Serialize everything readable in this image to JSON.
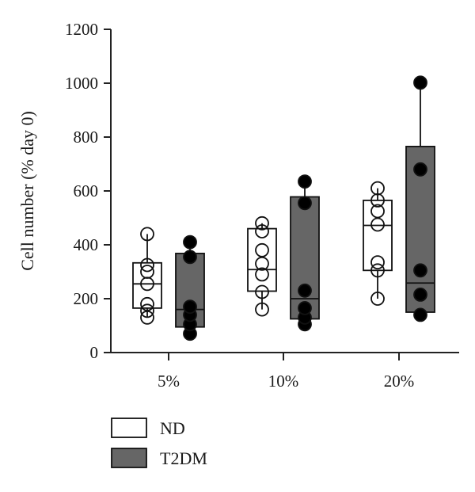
{
  "chart_data": {
    "type": "box",
    "ylabel": "Cell number (% day 0)",
    "xlabel": "",
    "title": "",
    "ylim": [
      0,
      1200
    ],
    "yticks": [
      "0",
      "200",
      "400",
      "600",
      "800",
      "1000",
      "1200"
    ],
    "categories": [
      "5%",
      "10%",
      "20%"
    ],
    "grid": false,
    "legend_position": "bottom-left",
    "series": [
      {
        "name": "ND",
        "color": "#ffffff",
        "marker": "open-circle",
        "boxes": [
          {
            "min": 130,
            "q1": 165,
            "median": 255,
            "q3": 333,
            "max": 440,
            "points": [
              130,
              155,
              180,
              255,
              300,
              325,
              440
            ]
          },
          {
            "min": 160,
            "q1": 228,
            "median": 308,
            "q3": 460,
            "max": 480,
            "points": [
              160,
              225,
              290,
              330,
              380,
              450,
              480
            ]
          },
          {
            "min": 200,
            "q1": 305,
            "median": 472,
            "q3": 565,
            "max": 610,
            "points": [
              200,
              305,
              335,
              475,
              525,
              565,
              610
            ]
          }
        ]
      },
      {
        "name": "T2DM",
        "color": "#666666",
        "marker": "filled-circle",
        "boxes": [
          {
            "min": 70,
            "q1": 95,
            "median": 160,
            "q3": 368,
            "max": 410,
            "points": [
              70,
              105,
              140,
              170,
              355,
              410
            ]
          },
          {
            "min": 105,
            "q1": 125,
            "median": 200,
            "q3": 578,
            "max": 635,
            "points": [
              105,
              130,
              165,
              230,
              555,
              635
            ]
          },
          {
            "min": 140,
            "q1": 150,
            "median": 258,
            "q3": 765,
            "max": 1002,
            "points": [
              140,
              215,
              305,
              680,
              1002
            ]
          }
        ]
      }
    ]
  }
}
